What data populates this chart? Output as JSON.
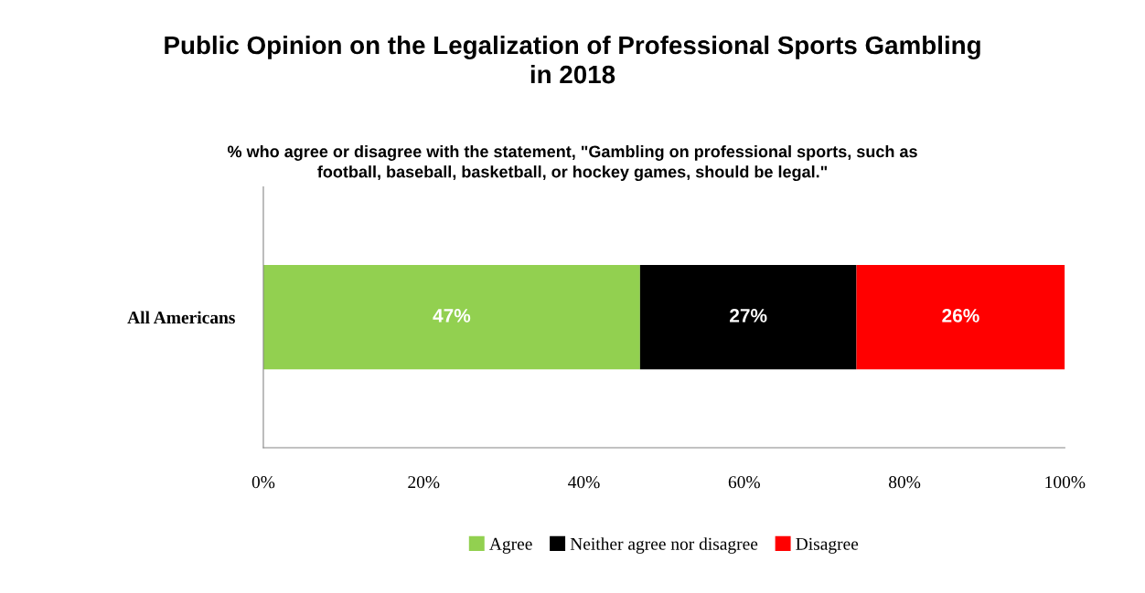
{
  "chart_data": {
    "type": "bar",
    "orientation": "horizontal",
    "stacked": true,
    "title": "Public Opinion on the Legalization of Professional Sports Gambling\nin 2018",
    "subtitle": "% who agree or disagree with the statement, \"Gambling on professional sports, such as\nfootball, baseball, basketball, or hockey games, should be legal.\"",
    "categories": [
      "All Americans"
    ],
    "series": [
      {
        "name": "Agree",
        "color": "#92d050",
        "values": [
          47
        ],
        "value_labels": [
          "47%"
        ]
      },
      {
        "name": "Neither agree nor disagree",
        "color": "#000000",
        "values": [
          27
        ],
        "value_labels": [
          "27%"
        ]
      },
      {
        "name": "Disagree",
        "color": "#ff0000",
        "values": [
          26
        ],
        "value_labels": [
          "26%"
        ]
      }
    ],
    "xlim": [
      0,
      100
    ],
    "xticks": [
      {
        "value": 0,
        "label": "0%"
      },
      {
        "value": 20,
        "label": "20%"
      },
      {
        "value": 40,
        "label": "40%"
      },
      {
        "value": 60,
        "label": "60%"
      },
      {
        "value": 80,
        "label": "80%"
      },
      {
        "value": 100,
        "label": "100%"
      }
    ],
    "grid": false,
    "legend": "bottom"
  }
}
